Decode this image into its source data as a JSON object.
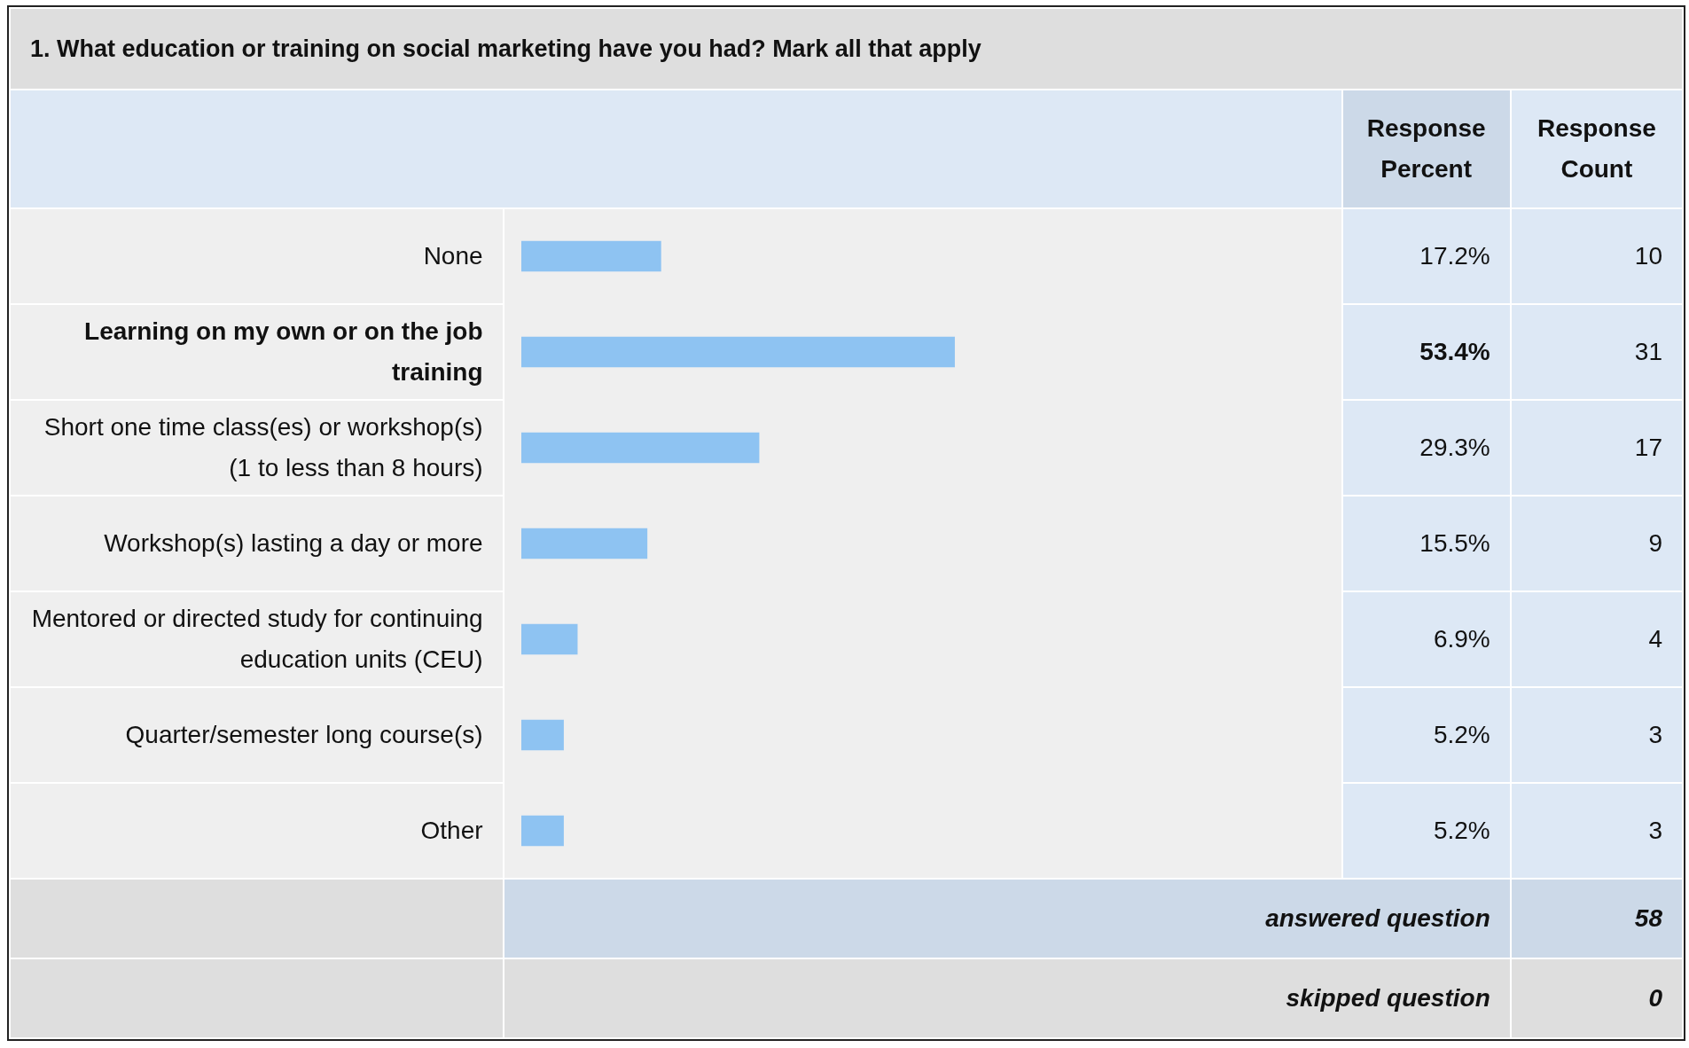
{
  "chart_data": {
    "type": "bar",
    "orientation": "horizontal",
    "title": "1. What education or training on social marketing have you had? Mark all that apply",
    "categories": [
      "None",
      "Learning on my own or on the job training",
      "Short one time class(es) or workshop(s) (1 to less than 8 hours)",
      "Workshop(s) lasting a day or more",
      "Mentored or directed study for continuing education units (CEU)",
      "Quarter/semester long course(s)",
      "Other"
    ],
    "values": [
      17.2,
      53.4,
      29.3,
      15.5,
      6.9,
      5.2,
      5.2
    ],
    "value_labels": [
      "17.2%",
      "53.4%",
      "29.3%",
      "15.5%",
      "6.9%",
      "5.2%",
      "5.2%"
    ],
    "color": "#8ec3f2",
    "tick_labels": false,
    "legend": false,
    "annotations": [
      "Response Percent",
      "Response Count",
      "10",
      "31",
      "17",
      "9",
      "4",
      "3",
      "3",
      "answered question",
      "58",
      "skipped question",
      "0"
    ]
  }
}
